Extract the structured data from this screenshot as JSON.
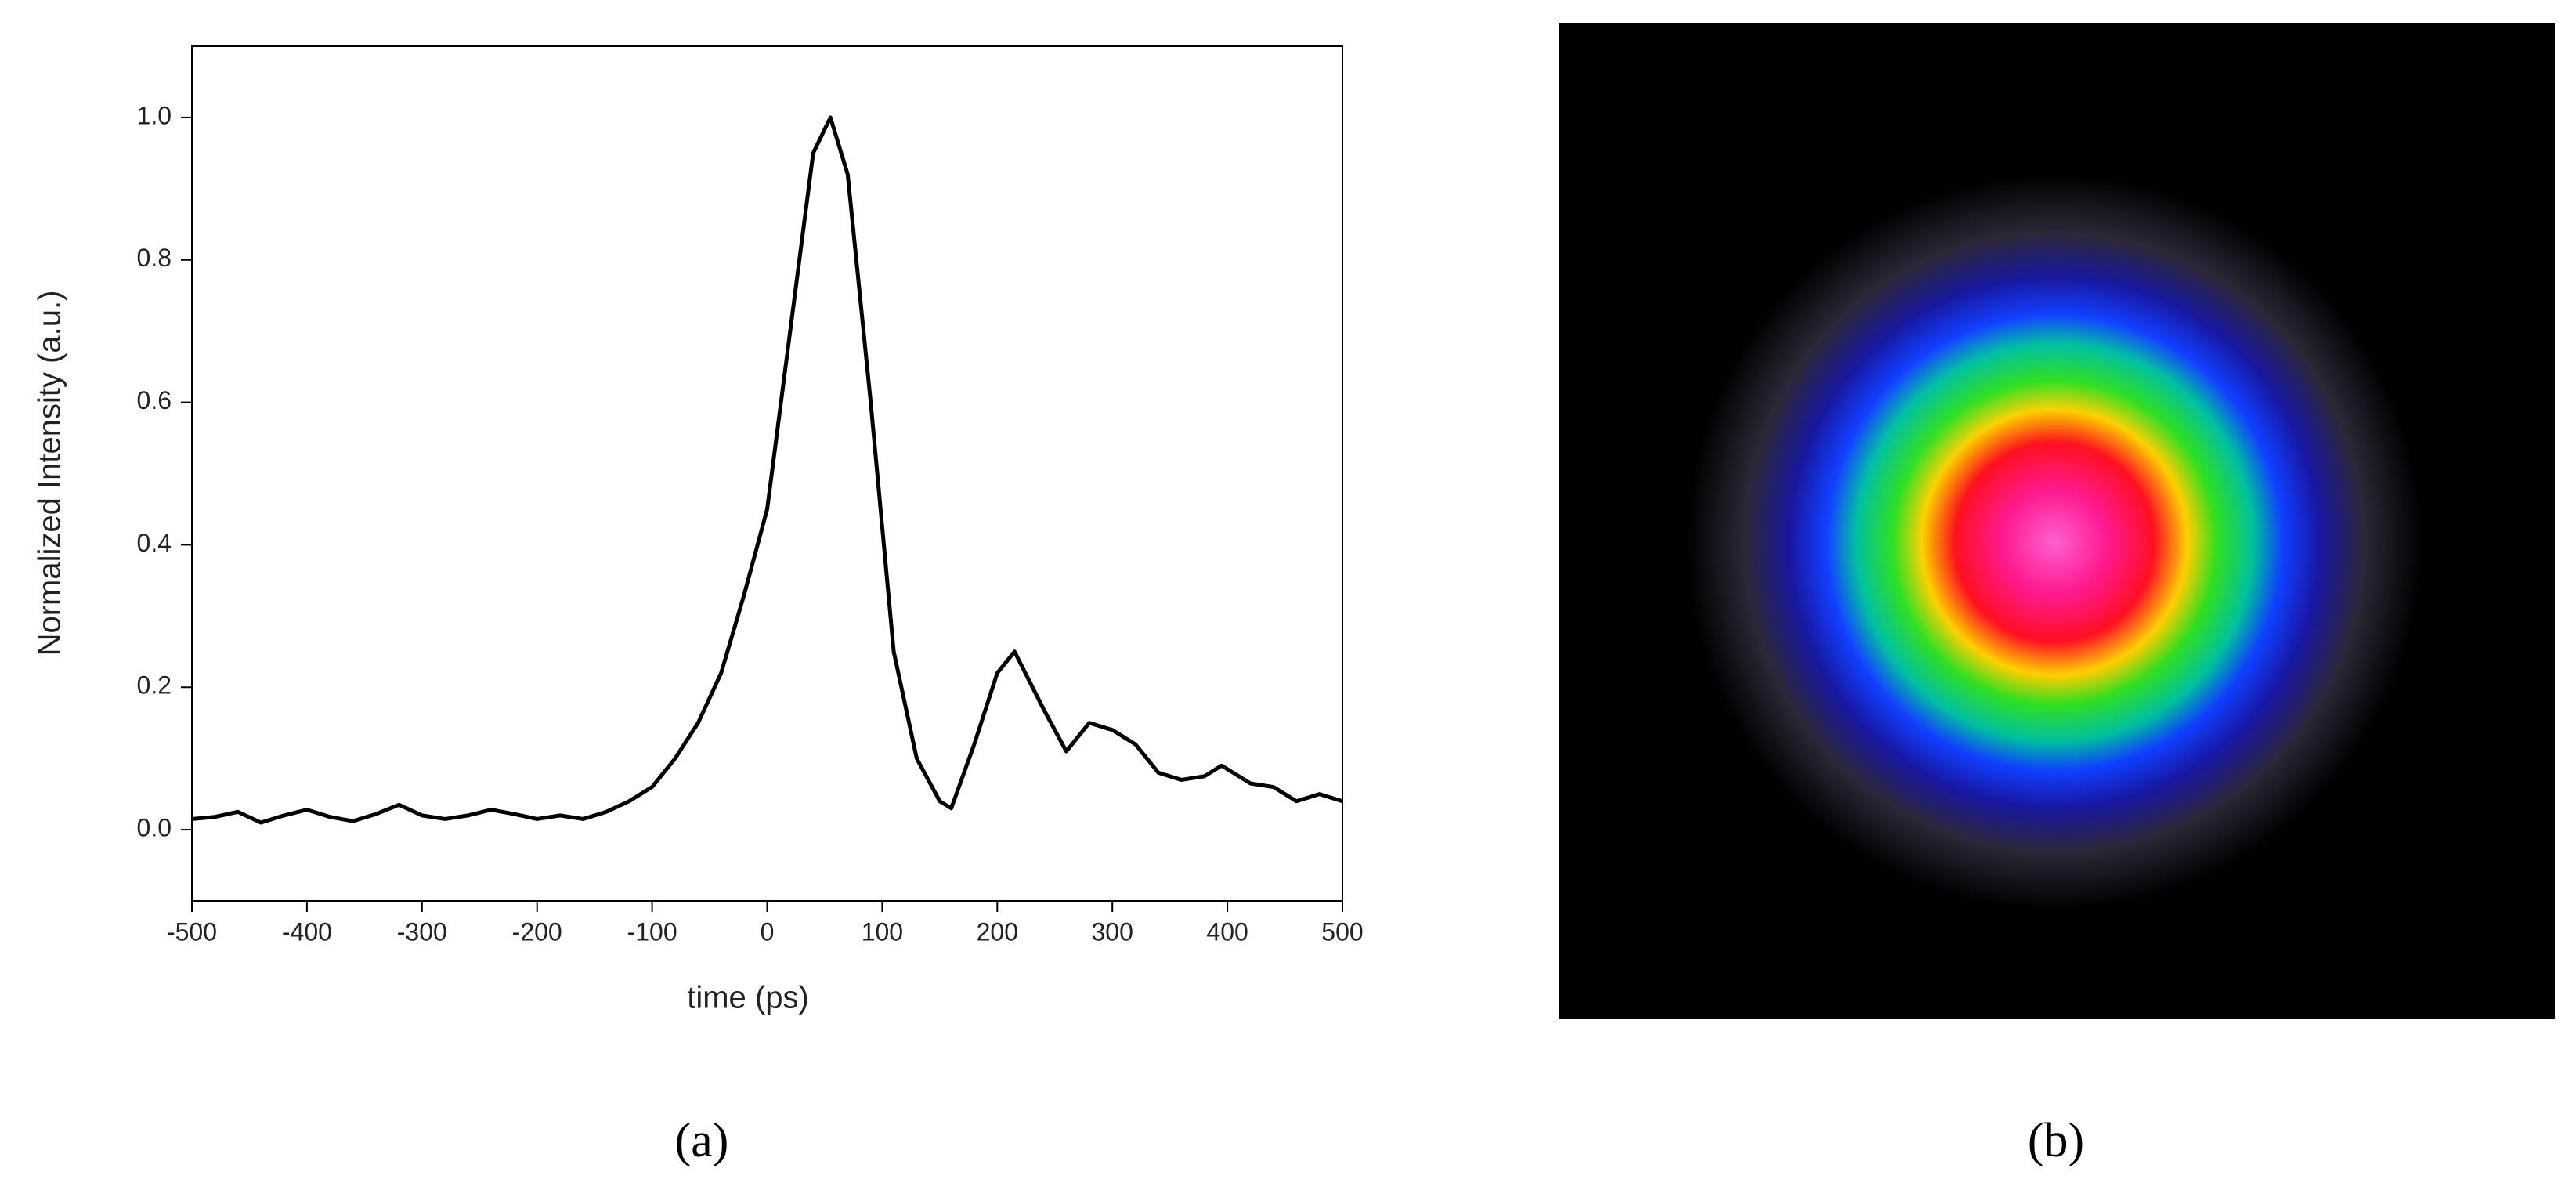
{
  "chart_data": {
    "type": "line",
    "xlabel": "time (ps)",
    "ylabel": "Normalized Intensity (a.u.)",
    "xlim": [
      -500,
      500
    ],
    "ylim": [
      -0.1,
      1.1
    ],
    "xticks": [
      -500,
      -400,
      -300,
      -200,
      -100,
      0,
      100,
      200,
      300,
      400,
      500
    ],
    "yticks": [
      {
        "value": 0,
        "label": "0.0"
      },
      0.2,
      0.4,
      0.6,
      0.8,
      {
        "value": 1,
        "label": "1.0"
      }
    ],
    "series": [
      {
        "color": "#000000",
        "x": [
          -500,
          -480,
          -460,
          -440,
          -420,
          -400,
          -380,
          -360,
          -340,
          -320,
          -300,
          -280,
          -260,
          -240,
          -220,
          -200,
          -180,
          -160,
          -140,
          -120,
          -100,
          -80,
          -60,
          -40,
          -20,
          0,
          20,
          40,
          55,
          70,
          90,
          110,
          130,
          150,
          160,
          180,
          200,
          215,
          240,
          260,
          280,
          300,
          320,
          340,
          360,
          380,
          395,
          420,
          440,
          460,
          480,
          500
        ],
        "values": [
          0.015,
          0.018,
          0.025,
          0.01,
          0.02,
          0.028,
          0.018,
          0.012,
          0.022,
          0.035,
          0.02,
          0.015,
          0.02,
          0.028,
          0.022,
          0.015,
          0.02,
          0.015,
          0.025,
          0.04,
          0.06,
          0.1,
          0.15,
          0.22,
          0.33,
          0.45,
          0.7,
          0.95,
          1.0,
          0.92,
          0.6,
          0.25,
          0.1,
          0.04,
          0.03,
          0.12,
          0.22,
          0.25,
          0.17,
          0.11,
          0.15,
          0.14,
          0.12,
          0.08,
          0.07,
          0.075,
          0.09,
          0.065,
          0.06,
          0.04,
          0.05,
          0.04
        ]
      }
    ]
  },
  "captions": [
    "(a)",
    "(b)"
  ]
}
